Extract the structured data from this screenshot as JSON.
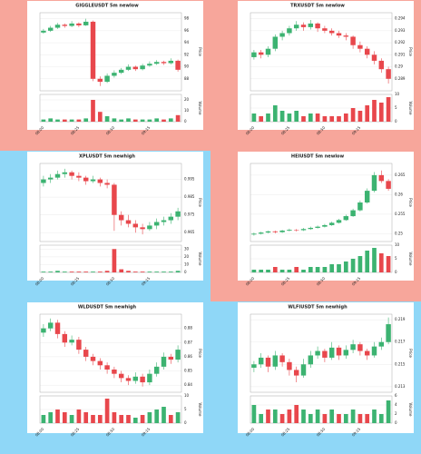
{
  "chart_data": [
    {
      "type": "candlestick",
      "title": "GIGGLEUSDT 5m newlow",
      "background": "#f7a69b",
      "up_color": "#3cb371",
      "down_color": "#e8474c",
      "y_label": "Price",
      "volume_label": "Volume",
      "categories": [
        "08:00",
        null,
        null,
        null,
        null,
        "08:25",
        null,
        null,
        null,
        null,
        "08:50",
        null,
        null,
        null,
        null,
        "09:15",
        null,
        null,
        null,
        null
      ],
      "ohlc": [
        [
          95.7,
          96.3,
          95.5,
          96
        ],
        [
          96,
          96.8,
          95.8,
          96.5
        ],
        [
          96.5,
          97.3,
          96.3,
          97
        ],
        [
          97,
          97.2,
          96.5,
          96.8
        ],
        [
          96.8,
          97.6,
          96.6,
          97.2
        ],
        [
          97.2,
          97.4,
          96.6,
          96.9
        ],
        [
          96.9,
          98,
          96.8,
          97.5
        ],
        [
          97.5,
          97.7,
          87.6,
          88
        ],
        [
          88,
          88.4,
          86.8,
          87.5
        ],
        [
          87.5,
          88.9,
          87.3,
          88.5
        ],
        [
          88.5,
          89.4,
          88.2,
          89
        ],
        [
          89,
          89.8,
          88.8,
          89.5
        ],
        [
          89.5,
          90.4,
          89.3,
          90
        ],
        [
          90,
          90.2,
          89.3,
          89.6
        ],
        [
          89.6,
          90.5,
          89.4,
          90.2
        ],
        [
          90.2,
          90.9,
          90,
          90.5
        ],
        [
          90.5,
          91.1,
          90.3,
          90.8
        ],
        [
          90.8,
          91,
          90.3,
          90.6
        ],
        [
          90.6,
          91.4,
          90.4,
          91
        ],
        [
          91,
          91.2,
          89.2,
          89.5
        ]
      ],
      "volume": [
        2,
        3,
        2,
        2,
        2,
        2,
        3,
        20,
        9,
        5,
        3,
        2,
        3,
        2,
        2,
        2,
        3,
        2,
        3,
        6
      ],
      "ylim": [
        86,
        99
      ],
      "yticks": [
        88,
        90,
        92,
        94,
        96,
        98
      ],
      "vlim": [
        0,
        25
      ],
      "vticks": [
        0,
        10,
        20
      ],
      "grid": true
    },
    {
      "type": "candlestick",
      "title": "TRXUSDT 5m newlow",
      "background": "#f7a69b",
      "up_color": "#3cb371",
      "down_color": "#e8474c",
      "y_label": "Price",
      "volume_label": "Volume",
      "categories": [
        "08:00",
        null,
        null,
        null,
        null,
        "08:25",
        null,
        null,
        null,
        null,
        "08:50",
        null,
        null,
        null,
        null,
        "09:15",
        null,
        null,
        null,
        null
      ],
      "ohlc": [
        [
          0.2908,
          0.2914,
          0.2906,
          0.2912
        ],
        [
          0.2912,
          0.2914,
          0.2907,
          0.291
        ],
        [
          0.291,
          0.2917,
          0.2908,
          0.2915
        ],
        [
          0.2915,
          0.2927,
          0.2913,
          0.2925
        ],
        [
          0.2925,
          0.293,
          0.2922,
          0.2928
        ],
        [
          0.2928,
          0.2934,
          0.2926,
          0.2932
        ],
        [
          0.2932,
          0.2938,
          0.293,
          0.2935
        ],
        [
          0.2935,
          0.2937,
          0.293,
          0.2933
        ],
        [
          0.2933,
          0.2939,
          0.2931,
          0.2936
        ],
        [
          0.2936,
          0.2937,
          0.2929,
          0.2932
        ],
        [
          0.2932,
          0.2934,
          0.2928,
          0.293
        ],
        [
          0.293,
          0.2932,
          0.2926,
          0.2928
        ],
        [
          0.2928,
          0.293,
          0.2924,
          0.2926
        ],
        [
          0.2926,
          0.2928,
          0.2922,
          0.2925
        ],
        [
          0.2925,
          0.2926,
          0.2915,
          0.2918
        ],
        [
          0.2918,
          0.2921,
          0.2912,
          0.2915
        ],
        [
          0.2915,
          0.2917,
          0.2907,
          0.291
        ],
        [
          0.291,
          0.2913,
          0.2902,
          0.2905
        ],
        [
          0.2905,
          0.2907,
          0.2895,
          0.2898
        ],
        [
          0.2898,
          0.29,
          0.2886,
          0.289
        ]
      ],
      "volume": [
        3,
        2,
        3,
        6,
        4,
        3,
        4,
        2,
        3,
        3,
        2,
        2,
        2,
        3,
        5,
        4,
        6,
        8,
        7,
        9
      ],
      "ylim": [
        0.288,
        0.2945
      ],
      "yticks": [
        0.289,
        0.29,
        0.291,
        0.292,
        0.293,
        0.294
      ],
      "vlim": [
        0,
        10
      ],
      "vticks": [
        0,
        5,
        10
      ],
      "grid": true
    },
    {
      "type": "candlestick",
      "title": "XPLUSDT 5m newhigh",
      "background": "#8fd7f7",
      "up_color": "#3cb371",
      "down_color": "#e8474c",
      "y_label": "Price",
      "volume_label": "Volume",
      "categories": [
        "08:00",
        null,
        null,
        null,
        null,
        "08:25",
        null,
        null,
        null,
        null,
        "08:50",
        null,
        null,
        null,
        null,
        "09:15",
        null,
        null,
        null,
        null
      ],
      "ohlc": [
        [
          0.993,
          0.997,
          0.991,
          0.995
        ],
        [
          0.995,
          0.998,
          0.993,
          0.996
        ],
        [
          0.996,
          1.0,
          0.995,
          0.998
        ],
        [
          0.998,
          1.001,
          0.996,
          0.999
        ],
        [
          0.999,
          1.0,
          0.995,
          0.997
        ],
        [
          0.997,
          0.999,
          0.994,
          0.996
        ],
        [
          0.996,
          0.997,
          0.992,
          0.994
        ],
        [
          0.994,
          0.997,
          0.993,
          0.995
        ],
        [
          0.995,
          0.996,
          0.991,
          0.993
        ],
        [
          0.993,
          0.995,
          0.99,
          0.992
        ],
        [
          0.992,
          0.993,
          0.966,
          0.975
        ],
        [
          0.975,
          0.977,
          0.969,
          0.972
        ],
        [
          0.972,
          0.975,
          0.968,
          0.97
        ],
        [
          0.97,
          0.972,
          0.965,
          0.968
        ],
        [
          0.968,
          0.97,
          0.964,
          0.967
        ],
        [
          0.967,
          0.971,
          0.966,
          0.969
        ],
        [
          0.969,
          0.973,
          0.967,
          0.971
        ],
        [
          0.971,
          0.974,
          0.969,
          0.972
        ],
        [
          0.972,
          0.976,
          0.97,
          0.974
        ],
        [
          0.974,
          0.979,
          0.972,
          0.977
        ]
      ],
      "volume": [
        1,
        1,
        2,
        1,
        1,
        1,
        1,
        1,
        1,
        2,
        30,
        4,
        2,
        1,
        1,
        1,
        1,
        1,
        1,
        2
      ],
      "ylim": [
        0.96,
        1.004
      ],
      "yticks": [
        0.965,
        0.975,
        0.985,
        0.995
      ],
      "vlim": [
        0,
        35
      ],
      "vticks": [
        0,
        10,
        20,
        30
      ],
      "grid": true
    },
    {
      "type": "candlestick",
      "title": "HEIUSDT 5m newlow",
      "background": "#f7a69b",
      "up_color": "#3cb371",
      "down_color": "#e8474c",
      "y_label": "Price",
      "volume_label": "Volume",
      "categories": [
        "08:00",
        null,
        null,
        null,
        null,
        "08:25",
        null,
        null,
        null,
        null,
        "08:50",
        null,
        null,
        null,
        null,
        "09:15",
        null,
        null,
        null,
        null
      ],
      "ohlc": [
        [
          0.2498,
          0.2503,
          0.2495,
          0.25
        ],
        [
          0.25,
          0.2505,
          0.2498,
          0.2503
        ],
        [
          0.2503,
          0.2508,
          0.2501,
          0.2506
        ],
        [
          0.2506,
          0.2508,
          0.2501,
          0.2504
        ],
        [
          0.2504,
          0.251,
          0.2502,
          0.2508
        ],
        [
          0.2508,
          0.2513,
          0.2506,
          0.251
        ],
        [
          0.251,
          0.2512,
          0.2506,
          0.2509
        ],
        [
          0.2509,
          0.2515,
          0.2507,
          0.2512
        ],
        [
          0.2512,
          0.2518,
          0.251,
          0.2515
        ],
        [
          0.2515,
          0.2521,
          0.2513,
          0.2518
        ],
        [
          0.2518,
          0.2525,
          0.2516,
          0.2522
        ],
        [
          0.2522,
          0.2531,
          0.252,
          0.2528
        ],
        [
          0.2528,
          0.2538,
          0.2526,
          0.2535
        ],
        [
          0.2535,
          0.2549,
          0.2533,
          0.2545
        ],
        [
          0.2545,
          0.2564,
          0.2543,
          0.256
        ],
        [
          0.256,
          0.2585,
          0.2557,
          0.258
        ],
        [
          0.258,
          0.2616,
          0.2577,
          0.261
        ],
        [
          0.261,
          0.2658,
          0.2606,
          0.265
        ],
        [
          0.265,
          0.2662,
          0.263,
          0.2635
        ],
        [
          0.2635,
          0.264,
          0.261,
          0.2615
        ]
      ],
      "volume": [
        1,
        1,
        1,
        2,
        1,
        1,
        2,
        1,
        2,
        2,
        2,
        3,
        3,
        4,
        5,
        6,
        8,
        9,
        7,
        6
      ],
      "ylim": [
        0.248,
        0.268
      ],
      "yticks": [
        0.25,
        0.255,
        0.26,
        0.265
      ],
      "vlim": [
        0,
        10
      ],
      "vticks": [
        0,
        5,
        10
      ],
      "grid": true
    },
    {
      "type": "candlestick",
      "title": "WLDUSDT 5m newhigh",
      "background": "#8fd7f7",
      "up_color": "#3cb371",
      "down_color": "#e8474c",
      "y_label": "Price",
      "volume_label": "Volume",
      "categories": [
        "08:00",
        null,
        null,
        null,
        null,
        "08:25",
        null,
        null,
        null,
        null,
        "08:50",
        null,
        null,
        null,
        null,
        "09:15",
        null,
        null,
        null,
        null
      ],
      "ohlc": [
        [
          0.877,
          0.883,
          0.874,
          0.88
        ],
        [
          0.88,
          0.887,
          0.878,
          0.884
        ],
        [
          0.884,
          0.886,
          0.873,
          0.876
        ],
        [
          0.876,
          0.878,
          0.867,
          0.87
        ],
        [
          0.87,
          0.875,
          0.868,
          0.872
        ],
        [
          0.872,
          0.874,
          0.862,
          0.865
        ],
        [
          0.865,
          0.867,
          0.857,
          0.86
        ],
        [
          0.86,
          0.862,
          0.854,
          0.857
        ],
        [
          0.857,
          0.859,
          0.851,
          0.854
        ],
        [
          0.854,
          0.856,
          0.848,
          0.851
        ],
        [
          0.851,
          0.853,
          0.845,
          0.848
        ],
        [
          0.848,
          0.85,
          0.842,
          0.845
        ],
        [
          0.845,
          0.847,
          0.84,
          0.843
        ],
        [
          0.843,
          0.849,
          0.841,
          0.846
        ],
        [
          0.846,
          0.848,
          0.839,
          0.842
        ],
        [
          0.842,
          0.851,
          0.84,
          0.848
        ],
        [
          0.848,
          0.856,
          0.846,
          0.853
        ],
        [
          0.853,
          0.863,
          0.851,
          0.86
        ],
        [
          0.86,
          0.862,
          0.855,
          0.858
        ],
        [
          0.858,
          0.868,
          0.856,
          0.865
        ]
      ],
      "volume": [
        3,
        4,
        5,
        4,
        3,
        5,
        4,
        3,
        3,
        9,
        4,
        3,
        3,
        2,
        3,
        4,
        5,
        6,
        3,
        4
      ],
      "ylim": [
        0.835,
        0.89
      ],
      "yticks": [
        0.84,
        0.85,
        0.86,
        0.87,
        0.88
      ],
      "vlim": [
        0,
        10
      ],
      "vticks": [
        0,
        5,
        10
      ],
      "grid": true
    },
    {
      "type": "candlestick",
      "title": "WLFIUSDT 5m newhigh",
      "background": "#8fd7f7",
      "up_color": "#3cb371",
      "down_color": "#e8474c",
      "y_label": "Price",
      "volume_label": "Volume",
      "categories": [
        "08:00",
        null,
        null,
        null,
        null,
        "08:25",
        null,
        null,
        null,
        null,
        "08:50",
        null,
        null,
        null,
        null,
        "09:15",
        null,
        null,
        null,
        null
      ],
      "ohlc": [
        [
          0.2147,
          0.2153,
          0.2143,
          0.215
        ],
        [
          0.215,
          0.216,
          0.2147,
          0.2156
        ],
        [
          0.2156,
          0.2158,
          0.2143,
          0.2148
        ],
        [
          0.2148,
          0.2162,
          0.2145,
          0.2158
        ],
        [
          0.2158,
          0.216,
          0.2148,
          0.2152
        ],
        [
          0.2152,
          0.2155,
          0.214,
          0.2145
        ],
        [
          0.2145,
          0.2148,
          0.2134,
          0.214
        ],
        [
          0.214,
          0.2155,
          0.2138,
          0.215
        ],
        [
          0.215,
          0.2162,
          0.2147,
          0.2158
        ],
        [
          0.2158,
          0.2166,
          0.2155,
          0.2162
        ],
        [
          0.2162,
          0.2164,
          0.2152,
          0.2156
        ],
        [
          0.2156,
          0.217,
          0.2154,
          0.2165
        ],
        [
          0.2165,
          0.2167,
          0.2154,
          0.2158
        ],
        [
          0.2158,
          0.2167,
          0.2155,
          0.2163
        ],
        [
          0.2163,
          0.2172,
          0.216,
          0.2168
        ],
        [
          0.2168,
          0.217,
          0.2158,
          0.2162
        ],
        [
          0.2162,
          0.2164,
          0.2154,
          0.2158
        ],
        [
          0.2158,
          0.217,
          0.2156,
          0.2166
        ],
        [
          0.2166,
          0.2174,
          0.2163,
          0.217
        ],
        [
          0.217,
          0.2192,
          0.2168,
          0.2186
        ]
      ],
      "volume": [
        4,
        2,
        3,
        3,
        2,
        3,
        4,
        3,
        2,
        3,
        2,
        3,
        2,
        2,
        3,
        2,
        2,
        3,
        2,
        5
      ],
      "ylim": [
        0.2125,
        0.2195
      ],
      "yticks": [
        0.213,
        0.215,
        0.217,
        0.219
      ],
      "vlim": [
        0,
        6
      ],
      "vticks": [
        0,
        2,
        4,
        6
      ],
      "grid": true
    }
  ]
}
